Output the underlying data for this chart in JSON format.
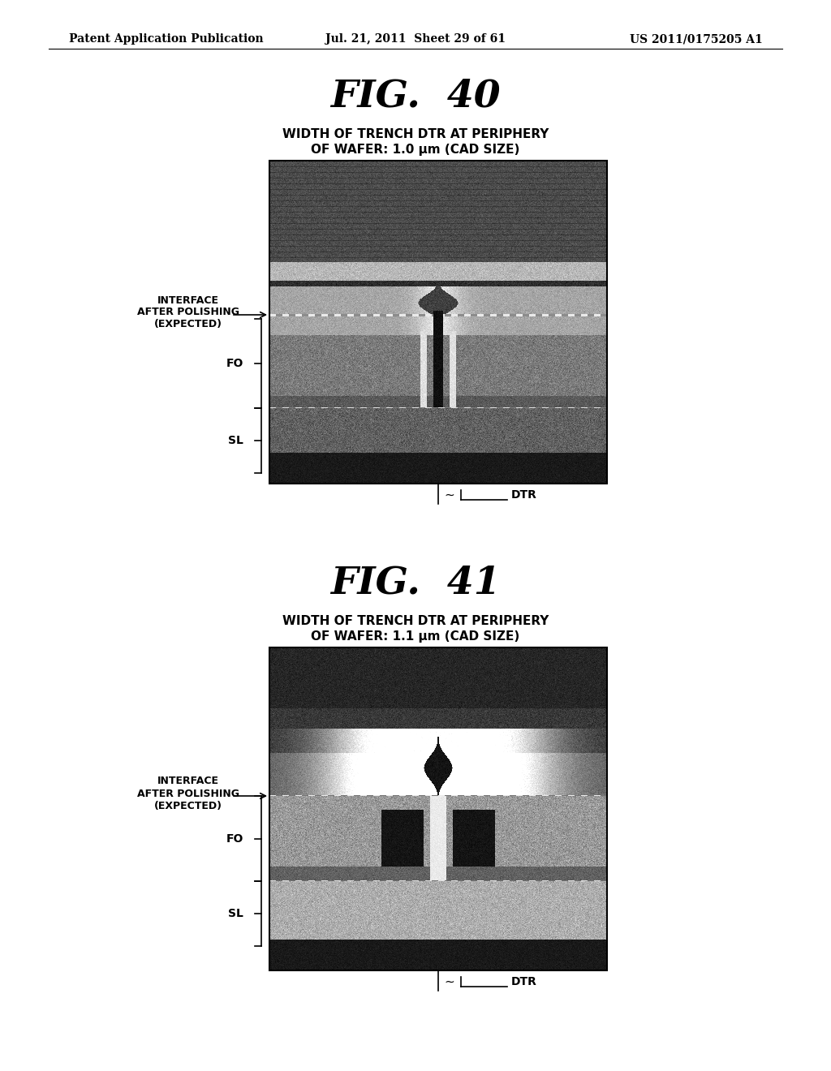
{
  "page_header_left": "Patent Application Publication",
  "page_header_mid": "Jul. 21, 2011  Sheet 29 of 61",
  "page_header_right": "US 2011/0175205 A1",
  "fig40_title": "FIG.  40",
  "fig40_subtitle_line1": "WIDTH OF TRENCH DTR AT PERIPHERY",
  "fig40_subtitle_line2": "OF WAFER: 1.0 μm (CAD SIZE)",
  "fig41_title": "FIG.  41",
  "fig41_subtitle_line1": "WIDTH OF TRENCH DTR AT PERIPHERY",
  "fig41_subtitle_line2": "OF WAFER: 1.1 μm (CAD SIZE)",
  "label_interface": "INTERFACE\nAFTER POLISHING\n(EXPECTED)",
  "label_FO": "FO",
  "label_SL": "SL",
  "label_DTR": "DTR",
  "background_color": "#ffffff",
  "text_color": "#000000"
}
